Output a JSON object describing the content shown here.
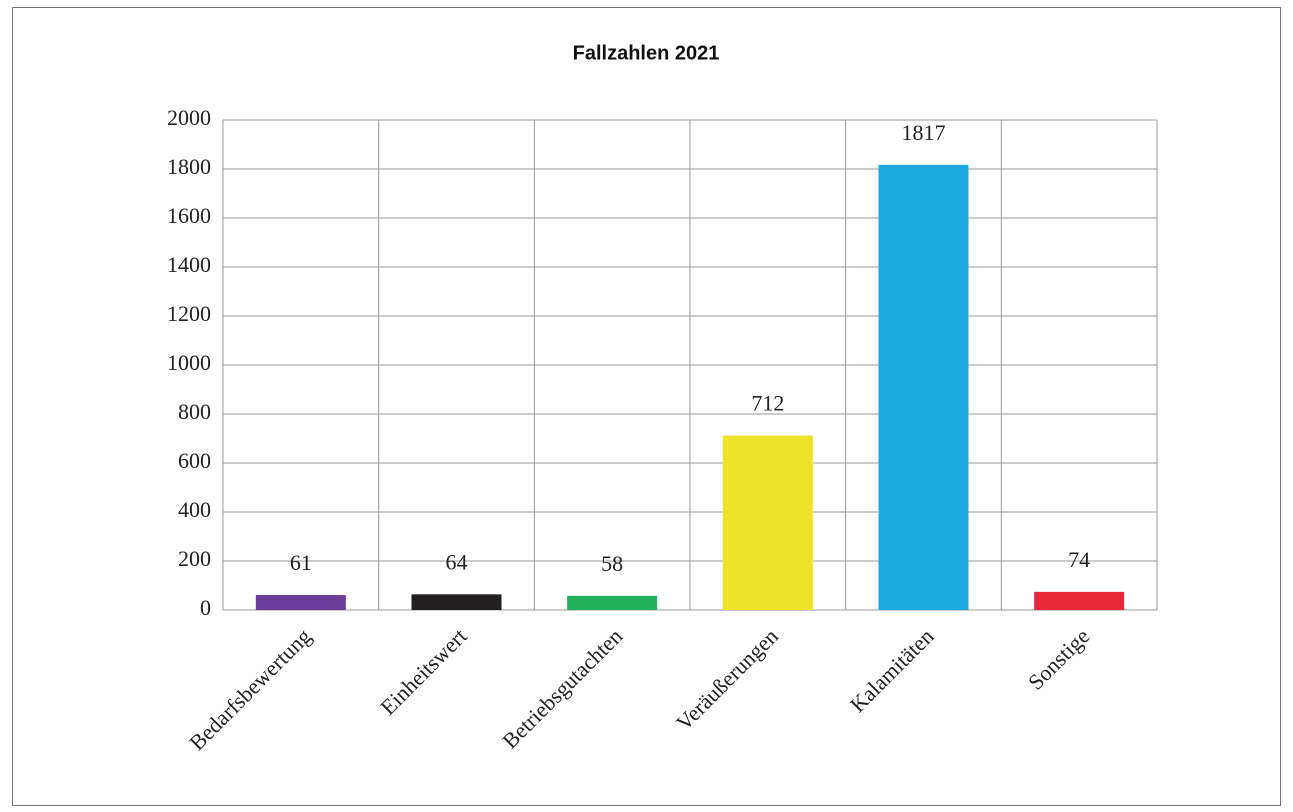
{
  "chart_data": {
    "type": "bar",
    "title": "Fallzahlen 2021",
    "categories": [
      "Bedarfsbewertung",
      "Einheitswert",
      "Betriebsgutachten",
      "Veräußerungen",
      "Kalamitäten",
      "Sonstige"
    ],
    "values": [
      61,
      64,
      58,
      712,
      1817,
      74
    ],
    "colors": [
      "#6a3d9a",
      "#231f20",
      "#22b05a",
      "#ede42a",
      "#1ea8e0",
      "#e8283c"
    ],
    "ylim": [
      0,
      2000
    ],
    "yticks": [
      0,
      200,
      400,
      600,
      800,
      1000,
      1200,
      1400,
      1600,
      1800,
      2000
    ],
    "grid": true
  }
}
